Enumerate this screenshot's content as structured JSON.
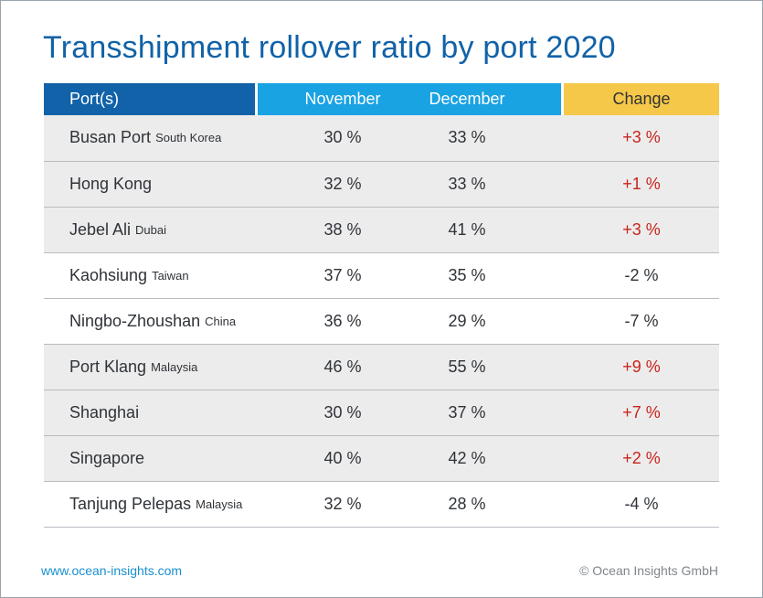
{
  "chart_data": {
    "type": "table",
    "title": "Transshipment rollover ratio by port 2020",
    "columns": [
      "Port(s)",
      "November",
      "December",
      "Change"
    ],
    "rows": [
      {
        "port": "Busan Port",
        "region": "South Korea",
        "november": "30 %",
        "december": "33 %",
        "change": "+3 %"
      },
      {
        "port": "Hong Kong",
        "region": "",
        "november": "32 %",
        "december": "33 %",
        "change": "+1 %"
      },
      {
        "port": "Jebel Ali",
        "region": "Dubai",
        "november": "38 %",
        "december": "41 %",
        "change": "+3 %"
      },
      {
        "port": "Kaohsiung",
        "region": "Taiwan",
        "november": "37 %",
        "december": "35 %",
        "change": "-2 %"
      },
      {
        "port": "Ningbo-Zhoushan",
        "region": "China",
        "november": "36 %",
        "december": "29 %",
        "change": "-7 %"
      },
      {
        "port": "Port Klang",
        "region": "Malaysia",
        "november": "46 %",
        "december": "55 %",
        "change": "+9 %"
      },
      {
        "port": "Shanghai",
        "region": "",
        "november": "30 %",
        "december": "37 %",
        "change": "+7 %"
      },
      {
        "port": "Singapore",
        "region": "",
        "november": "40 %",
        "december": "42 %",
        "change": "+2 %"
      },
      {
        "port": "Tanjung Pelepas",
        "region": "Malaysia",
        "november": "32 %",
        "december": "28 %",
        "change": "-4 %"
      }
    ]
  },
  "footer": {
    "website": "www.ocean-insights.com",
    "copyright": "© Ocean Insights GmbH"
  },
  "colors": {
    "title": "#1162a8",
    "port_header": "#1162a8",
    "month_header": "#1aa3e3",
    "change_header": "#f5c84a",
    "positive_change": "#c8241d",
    "row_shade": "#ececec"
  }
}
